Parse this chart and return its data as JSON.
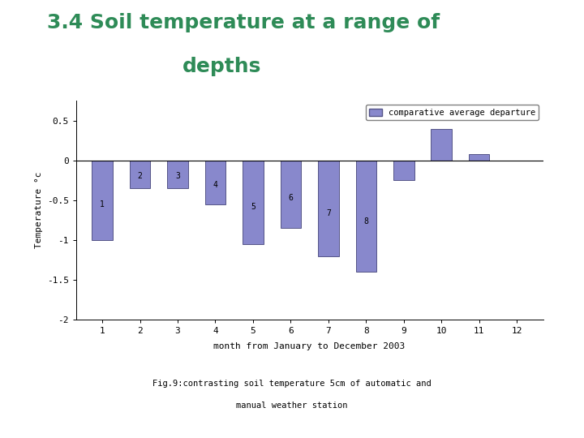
{
  "months": [
    1,
    2,
    3,
    4,
    5,
    6,
    7,
    8,
    9,
    10,
    11,
    12
  ],
  "values": [
    -1.0,
    -0.35,
    -0.35,
    -0.55,
    -1.05,
    -0.85,
    -1.2,
    -1.4,
    -0.25,
    0.4,
    0.08,
    0.0
  ],
  "bar_color": "#8888cc",
  "bar_edgecolor": "#555588",
  "title_line1": "3.4 Soil temperature at a range of",
  "title_line2": "depths",
  "title_color": "#2e8b57",
  "ylabel": "Temperature °c",
  "xlabel": "month from January to December 2003",
  "legend_label": "comparative average departure",
  "caption_line1": "Fig.9:contrasting soil temperature 5cm of automatic and",
  "caption_line2": "manual weather station",
  "ylim": [
    -2.0,
    0.75
  ],
  "yticks": [
    0.5,
    0,
    -0.5,
    -1,
    -1.5,
    -2
  ],
  "ytick_labels": [
    "0.5",
    "0",
    "-0.5",
    "-1",
    "-1.5",
    "-2"
  ],
  "figsize": [
    7.2,
    5.4
  ],
  "dpi": 100,
  "bg_color": "#ffffff"
}
